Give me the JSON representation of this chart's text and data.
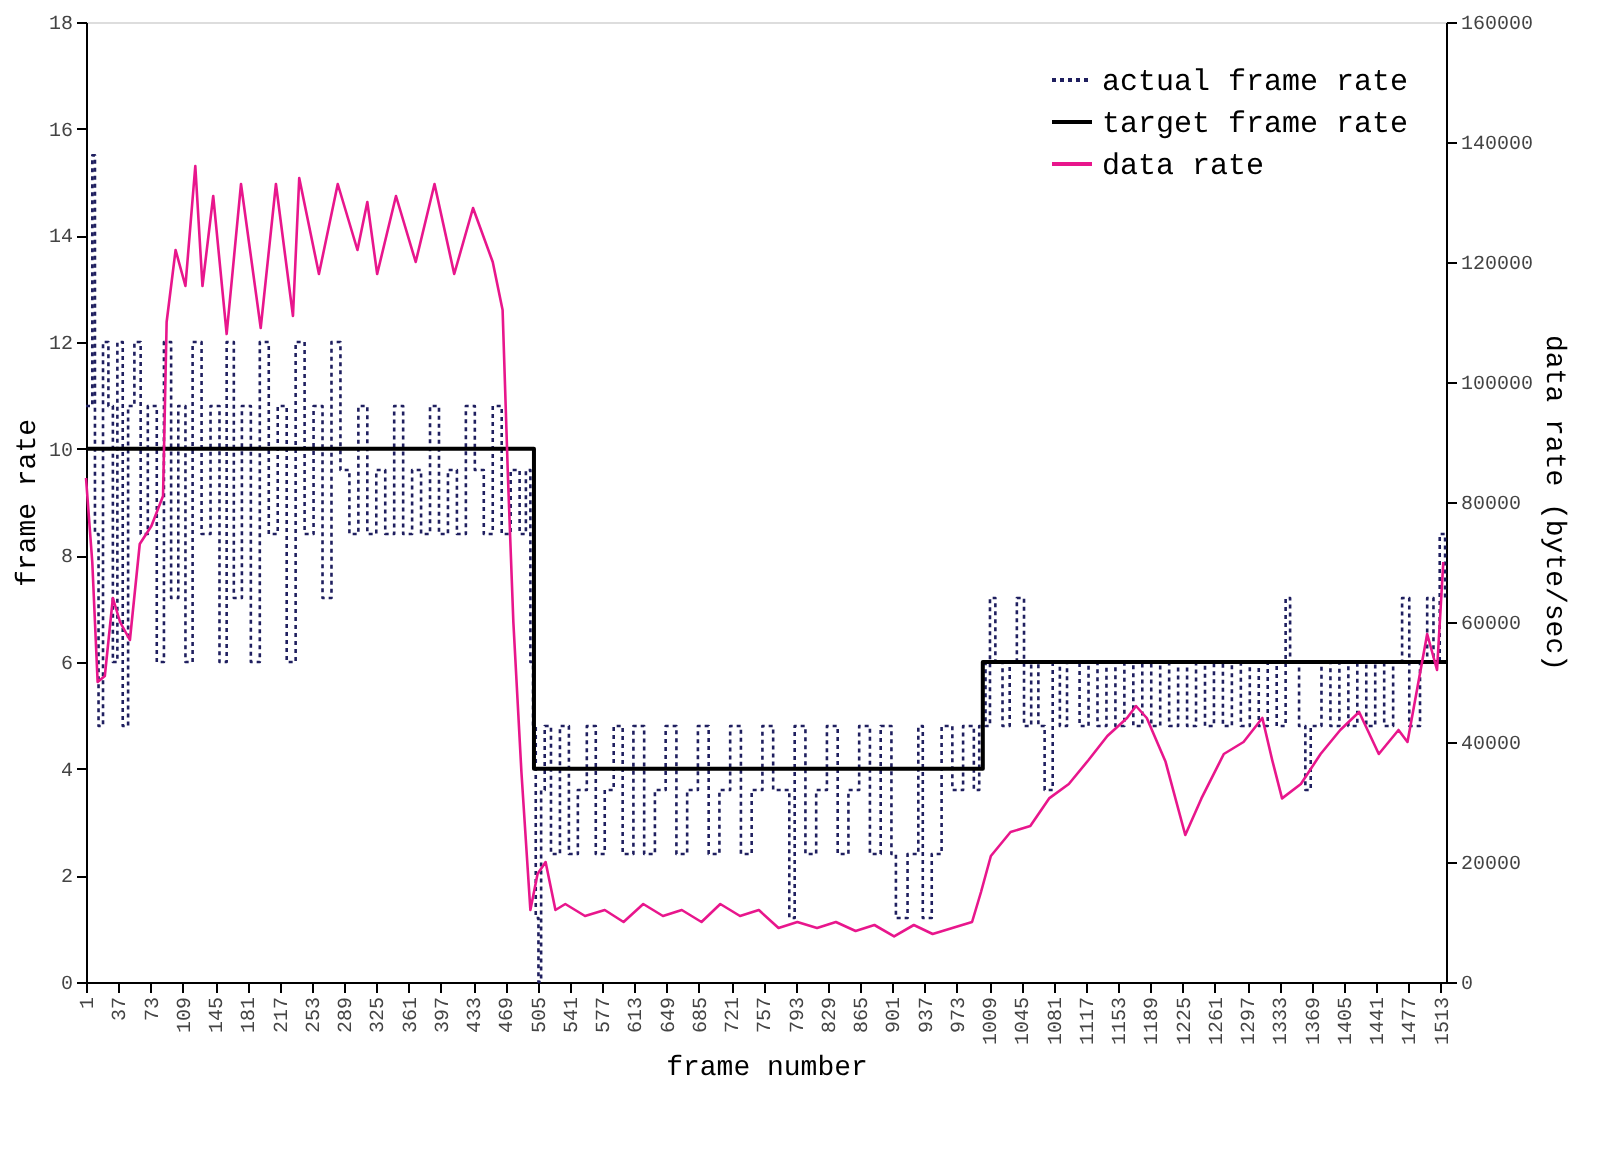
{
  "chart_data": {
    "type": "line",
    "xlabel": "frame number",
    "ylabel": "frame rate",
    "y2label": "data rate (byte/sec)",
    "xlim": [
      1,
      1519
    ],
    "xticks": [
      1,
      37,
      73,
      109,
      145,
      181,
      217,
      253,
      289,
      325,
      361,
      397,
      433,
      469,
      505,
      541,
      577,
      613,
      649,
      685,
      721,
      757,
      793,
      829,
      865,
      901,
      937,
      973,
      1009,
      1045,
      1081,
      1117,
      1153,
      1189,
      1225,
      1261,
      1297,
      1333,
      1369,
      1405,
      1441,
      1477,
      1513
    ],
    "ylim": [
      0,
      18
    ],
    "yticks": [
      0,
      2,
      4,
      6,
      8,
      10,
      12,
      14,
      16,
      18
    ],
    "y2lim": [
      0,
      160000
    ],
    "y2ticks": [
      0,
      20000,
      40000,
      60000,
      80000,
      100000,
      120000,
      140000,
      160000
    ],
    "grid": false,
    "legend": "top right",
    "marker": "none",
    "series": [
      {
        "name": "actual frame rate",
        "type": "step",
        "line_style": "dotted",
        "color": "#1f1f5f",
        "x": [
          1,
          8,
          11,
          15,
          20,
          26,
          31,
          36,
          42,
          48,
          55,
          62,
          70,
          80,
          88,
          96,
          104,
          112,
          120,
          130,
          140,
          150,
          158,
          166,
          175,
          185,
          195,
          205,
          215,
          225,
          235,
          245,
          255,
          265,
          275,
          285,
          295,
          305,
          315,
          325,
          335,
          345,
          355,
          365,
          375,
          385,
          395,
          405,
          415,
          425,
          435,
          445,
          455,
          465,
          475,
          485,
          492,
          497,
          500,
          503,
          506,
          509,
          513,
          520,
          530,
          540,
          550,
          560,
          570,
          580,
          590,
          600,
          612,
          624,
          636,
          648,
          660,
          672,
          684,
          696,
          708,
          720,
          732,
          744,
          756,
          768,
          786,
          792,
          804,
          816,
          828,
          840,
          852,
          864,
          876,
          888,
          900,
          905,
          918,
          930,
          935,
          945,
          956,
          968,
          980,
          992,
          998,
          1002,
          1005,
          1010,
          1016,
          1024,
          1032,
          1040,
          1048,
          1056,
          1064,
          1071,
          1080,
          1088,
          1096,
          1110,
          1120,
          1130,
          1140,
          1150,
          1160,
          1170,
          1180,
          1190,
          1200,
          1210,
          1220,
          1230,
          1240,
          1250,
          1260,
          1270,
          1280,
          1290,
          1300,
          1310,
          1320,
          1330,
          1340,
          1345,
          1355,
          1362,
          1368,
          1380,
          1390,
          1400,
          1410,
          1420,
          1430,
          1440,
          1450,
          1460,
          1470,
          1478,
          1490,
          1498,
          1505,
          1512,
          1518
        ],
        "values": [
          10.8,
          15.5,
          8.4,
          4.8,
          12,
          10.8,
          6,
          12,
          4.8,
          10.8,
          12,
          8.4,
          10.8,
          6,
          12,
          7.2,
          10.8,
          6,
          12,
          8.4,
          10.8,
          6,
          12,
          7.2,
          10.8,
          6,
          12,
          8.4,
          10.8,
          6,
          12,
          8.4,
          10.8,
          7.2,
          12,
          9.6,
          8.4,
          10.8,
          8.4,
          9.6,
          8.4,
          10.8,
          8.4,
          9.6,
          8.4,
          10.8,
          8.4,
          9.6,
          8.4,
          10.8,
          9.6,
          8.4,
          10.8,
          8.4,
          9.6,
          8.4,
          9.6,
          6,
          4.8,
          1.2,
          0,
          3.6,
          4.8,
          2.4,
          4.8,
          2.4,
          3.6,
          4.8,
          2.4,
          3.6,
          4.8,
          2.4,
          4.8,
          2.4,
          3.6,
          4.8,
          2.4,
          3.6,
          4.8,
          2.4,
          3.6,
          4.8,
          2.4,
          3.6,
          4.8,
          3.6,
          1.2,
          4.8,
          2.4,
          3.6,
          4.8,
          2.4,
          3.6,
          4.8,
          2.4,
          4.8,
          2.4,
          1.2,
          2.4,
          4.8,
          1.2,
          2.4,
          4.8,
          3.6,
          4.8,
          3.6,
          4.8,
          6,
          4.8,
          7.2,
          6,
          4.8,
          6,
          7.2,
          4.8,
          6,
          4.8,
          3.6,
          6,
          4.8,
          6,
          4.8,
          6,
          4.8,
          6,
          4.8,
          6,
          4.8,
          6,
          4.8,
          6,
          4.8,
          6,
          4.8,
          6,
          4.8,
          6,
          4.8,
          6,
          4.8,
          6,
          4.8,
          6,
          4.8,
          7.2,
          6,
          4.8,
          3.6,
          4.8,
          6,
          4.8,
          6,
          4.8,
          6,
          4.8,
          6,
          4.8,
          6,
          7.2,
          4.8,
          6,
          7.2,
          6,
          8.4,
          7.2
        ]
      },
      {
        "name": "target frame rate",
        "type": "step",
        "line_style": "solid",
        "color": "#000000",
        "x": [
          1,
          501,
          1002,
          1519
        ],
        "values": [
          10,
          4,
          6,
          6
        ]
      },
      {
        "name": "data rate",
        "axis": "y2",
        "line_style": "solid",
        "color": "#e8168c",
        "x": [
          1,
          8,
          14,
          22,
          31,
          39,
          50,
          61,
          74,
          87,
          91,
          101,
          112,
          123,
          131,
          143,
          158,
          174,
          196,
          213,
          232,
          239,
          261,
          282,
          304,
          315,
          326,
          347,
          369,
          390,
          412,
          433,
          455,
          466,
          472,
          478,
          487,
          497,
          505,
          514,
          525,
          536,
          558,
          580,
          601,
          623,
          645,
          666,
          688,
          709,
          731,
          752,
          774,
          795,
          817,
          838,
          860,
          881,
          903,
          925,
          946,
          968,
          990,
          1000,
          1011,
          1033,
          1055,
          1076,
          1098,
          1120,
          1141,
          1163,
          1173,
          1185,
          1206,
          1228,
          1246,
          1271,
          1293,
          1314,
          1325,
          1336,
          1357,
          1379,
          1401,
          1422,
          1444,
          1466,
          1476,
          1498,
          1509,
          1516
        ],
        "values": [
          84000,
          70000,
          50000,
          51000,
          64000,
          60000,
          57000,
          73000,
          76000,
          81000,
          110000,
          122000,
          116000,
          136000,
          116000,
          131000,
          108000,
          133000,
          109000,
          133000,
          111000,
          134000,
          118000,
          133000,
          122000,
          130000,
          118000,
          131000,
          120000,
          133000,
          118000,
          129000,
          120000,
          112000,
          84000,
          60000,
          35000,
          12000,
          18000,
          20000,
          12000,
          13000,
          11000,
          12000,
          10000,
          13000,
          11000,
          12000,
          10000,
          13000,
          11000,
          12000,
          9000,
          10000,
          9000,
          10000,
          8500,
          9500,
          7600,
          9500,
          8000,
          9000,
          10000,
          15000,
          21000,
          25000,
          26000,
          30600,
          33000,
          37000,
          41000,
          44000,
          46000,
          44000,
          36700,
          24500,
          30600,
          38000,
          40000,
          44000,
          37000,
          30600,
          33000,
          38000,
          42000,
          45000,
          38000,
          42000,
          40000,
          58000,
          52000,
          70000
        ]
      }
    ]
  }
}
